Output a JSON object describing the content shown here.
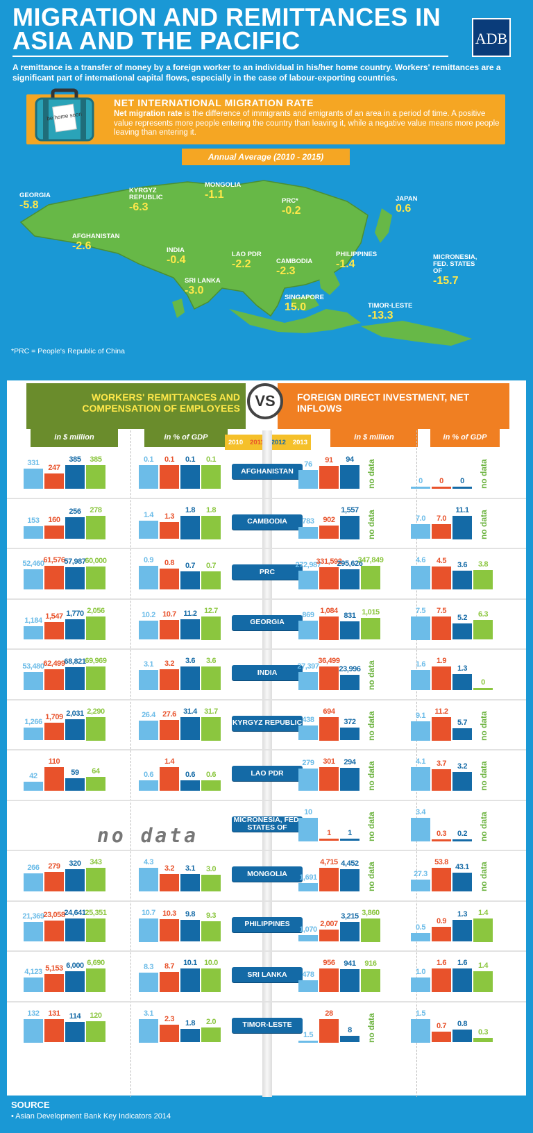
{
  "header": {
    "title": "MIGRATION AND REMITTANCES IN ASIA AND THE PACIFIC",
    "logo": "ADB",
    "intro": "A remittance is a transfer of money by a foreign worker to an individual in his/her home country. Workers' remittances are a significant part of international capital flows, especially in the case of labour-exporting countries."
  },
  "migration": {
    "title": "NET INTERNATIONAL MIGRATION RATE",
    "case_sticker": "be home soon",
    "desc_bold": "Net migration rate",
    "desc_rest": " is the difference of immigrants and emigrants of an area in a period of time. A positive value represents more people entering the country than leaving it, while a negative value means more people leaving than entering it.",
    "period": "Annual Average (2010 - 2015)",
    "footnote": "*PRC = People's Republic of China",
    "countries": [
      {
        "name": "GEORGIA",
        "value": "-5.8"
      },
      {
        "name": "KYRGYZ REPUBLIC",
        "value": "-6.3"
      },
      {
        "name": "MONGOLIA",
        "value": "-1.1"
      },
      {
        "name": "PRC*",
        "value": "-0.2"
      },
      {
        "name": "JAPAN",
        "value": "0.6"
      },
      {
        "name": "AFGHANISTAN",
        "value": "-2.6"
      },
      {
        "name": "INDIA",
        "value": "-0.4"
      },
      {
        "name": "LAO PDR",
        "value": "-2.2"
      },
      {
        "name": "CAMBODIA",
        "value": "-2.3"
      },
      {
        "name": "PHILIPPINES",
        "value": "-1.4"
      },
      {
        "name": "MICRONESIA, FED. STATES OF",
        "value": "-15.7"
      },
      {
        "name": "SRI LANKA",
        "value": "-3.0"
      },
      {
        "name": "SINGAPORE",
        "value": "15.0"
      },
      {
        "name": "TIMOR-LESTE",
        "value": "-13.3"
      }
    ]
  },
  "comparison": {
    "left_title": "WORKERS' REMITTANCES AND COMPENSATION OF EMPLOYEES",
    "right_title": "FOREIGN DIRECT INVESTMENT, NET INFLOWS",
    "vs": "VS",
    "col_million": "in $ million",
    "col_gdp": "in % of GDP",
    "years": [
      "2010",
      "2011",
      "2012",
      "2013"
    ],
    "no_data": "no data",
    "no_data_big": "no data",
    "colors": {
      "2010": "#6cbce8",
      "2011": "#e8522b",
      "2012": "#146aa6",
      "2013": "#8bc63f"
    }
  },
  "chart_data": {
    "type": "bar",
    "categories": [
      "AFGHANISTAN",
      "CAMBODIA",
      "PRC",
      "GEORGIA",
      "INDIA",
      "KYRGYZ REPUBLIC",
      "LAO PDR",
      "MICRONESIA, FED. STATES OF",
      "MONGOLIA",
      "PHILIPPINES",
      "SRI LANKA",
      "TIMOR-LESTE"
    ],
    "rows": [
      {
        "rem_m": [
          "331",
          "247",
          "385",
          "385"
        ],
        "rem_g": [
          "0.1",
          "0.1",
          "0.1",
          "0.1"
        ],
        "fdi_m": [
          "76",
          "91",
          "94",
          null
        ],
        "fdi_g": [
          "0",
          "0",
          "0",
          null
        ]
      },
      {
        "rem_m": [
          "153",
          "160",
          "256",
          "278"
        ],
        "rem_g": [
          "1.4",
          "1.3",
          "1.8",
          "1.8"
        ],
        "fdi_m": [
          "783",
          "902",
          "1,557",
          null
        ],
        "fdi_g": [
          "7.0",
          "7.0",
          "11.1",
          null
        ]
      },
      {
        "rem_m": [
          "52,460",
          "61,576",
          "57,987",
          "60,000"
        ],
        "rem_g": [
          "0.9",
          "0.8",
          "0.7",
          "0.7"
        ],
        "fdi_m": [
          "272,987",
          "331,592",
          "295,626",
          "347,849"
        ],
        "fdi_g": [
          "4.6",
          "4.5",
          "3.6",
          "3.8"
        ]
      },
      {
        "rem_m": [
          "1,184",
          "1,547",
          "1,770",
          "2,056"
        ],
        "rem_g": [
          "10.2",
          "10.7",
          "11.2",
          "12.7"
        ],
        "fdi_m": [
          "869",
          "1,084",
          "831",
          "1,015"
        ],
        "fdi_g": [
          "7.5",
          "7.5",
          "5.2",
          "6.3"
        ]
      },
      {
        "rem_m": [
          "53,480",
          "62,499",
          "68,821",
          "69,969"
        ],
        "rem_g": [
          "3.1",
          "3.2",
          "3.6",
          "3.6"
        ],
        "fdi_m": [
          "27,397",
          "36,499",
          "23,996",
          null
        ],
        "fdi_g": [
          "1.6",
          "1.9",
          "1.3",
          "0"
        ]
      },
      {
        "rem_m": [
          "1,266",
          "1,709",
          "2,031",
          "2,290"
        ],
        "rem_g": [
          "26.4",
          "27.6",
          "31.4",
          "31.7"
        ],
        "fdi_m": [
          "438",
          "694",
          "372",
          null
        ],
        "fdi_g": [
          "9.1",
          "11.2",
          "5.7",
          null
        ]
      },
      {
        "rem_m": [
          "42",
          "110",
          "59",
          "64"
        ],
        "rem_g": [
          "0.6",
          "1.4",
          "0.6",
          "0.6"
        ],
        "fdi_m": [
          "279",
          "301",
          "294",
          null
        ],
        "fdi_g": [
          "4.1",
          "3.7",
          "3.2",
          null
        ]
      },
      {
        "rem_m": null,
        "rem_g": null,
        "fdi_m": [
          "10",
          "1",
          "1",
          null
        ],
        "fdi_g": [
          "3.4",
          "0.3",
          "0.2",
          null
        ]
      },
      {
        "rem_m": [
          "266",
          "279",
          "320",
          "343"
        ],
        "rem_g": [
          "4.3",
          "3.2",
          "3.1",
          "3.0"
        ],
        "fdi_m": [
          "1,691",
          "4,715",
          "4,452",
          null
        ],
        "fdi_g": [
          "27.3",
          "53.8",
          "43.1",
          null
        ]
      },
      {
        "rem_m": [
          "21,369",
          "23,058",
          "24,641",
          "25,351"
        ],
        "rem_g": [
          "10.7",
          "10.3",
          "9.8",
          "9.3"
        ],
        "fdi_m": [
          "1,070",
          "2,007",
          "3,215",
          "3,860"
        ],
        "fdi_g": [
          "0.5",
          "0.9",
          "1.3",
          "1.4"
        ]
      },
      {
        "rem_m": [
          "4,123",
          "5,153",
          "6,000",
          "6,690"
        ],
        "rem_g": [
          "8.3",
          "8.7",
          "10.1",
          "10.0"
        ],
        "fdi_m": [
          "478",
          "956",
          "941",
          "916"
        ],
        "fdi_g": [
          "1.0",
          "1.6",
          "1.6",
          "1.4"
        ]
      },
      {
        "rem_m": [
          "132",
          "131",
          "114",
          "120"
        ],
        "rem_g": [
          "3.1",
          "2.3",
          "1.8",
          "2.0"
        ],
        "fdi_m": [
          "1.5",
          "28",
          "8",
          null
        ],
        "fdi_g": [
          "1.5",
          "0.7",
          "0.8",
          "0.3"
        ]
      }
    ]
  },
  "country_labels": [
    "AFGHANISTAN",
    "CAMBODIA",
    "PRC",
    "GEORGIA",
    "INDIA",
    "KYRGYZ REPUBLIC",
    "LAO PDR",
    "MICRONESIA, FED. STATES OF",
    "MONGOLIA",
    "PHILIPPINES",
    "SRI LANKA",
    "TIMOR-LESTE"
  ],
  "source": {
    "title": "SOURCE",
    "text": "• Asian Development Bank Key Indicators 2014"
  }
}
